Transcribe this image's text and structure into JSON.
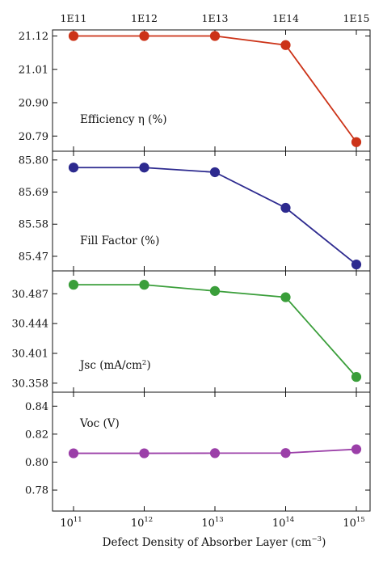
{
  "chart_data": {
    "type": "line",
    "x": [
      11,
      12,
      13,
      14,
      15
    ],
    "xlabel": {
      "text": "Defect Density of Absorber Layer (cm",
      "exp": "−3",
      "close": ")"
    },
    "bottom_ticks": [
      {
        "base": "10",
        "exp": "11"
      },
      {
        "base": "10",
        "exp": "12"
      },
      {
        "base": "10",
        "exp": "13"
      },
      {
        "base": "10",
        "exp": "14"
      },
      {
        "base": "10",
        "exp": "15"
      }
    ],
    "top_ticks": [
      "1E11",
      "1E12",
      "1E13",
      "1E14",
      "1E15"
    ],
    "panels": [
      {
        "label": "Efficiency η (%)",
        "color": "#cc3318",
        "values": [
          21.12,
          21.12,
          21.12,
          21.09,
          20.77
        ],
        "ylim": [
          20.74,
          21.14
        ],
        "yticks": [
          20.79,
          20.9,
          21.01,
          21.12
        ],
        "ytick_labels": [
          "20.79",
          "20.90",
          "21.01",
          "21.12"
        ]
      },
      {
        "label": "Fill Factor (%)",
        "color": "#2d2a8f",
        "values": [
          85.774,
          85.774,
          85.758,
          85.636,
          85.442
        ],
        "ylim": [
          85.42,
          85.83
        ],
        "yticks": [
          85.47,
          85.58,
          85.69,
          85.8
        ],
        "ytick_labels": [
          "85.47",
          "85.58",
          "85.69",
          "85.80"
        ]
      },
      {
        "label": "Jsc (mA/cm",
        "label_sup": "2",
        "label_close": ")",
        "color": "#3a9e3a",
        "values": [
          30.5,
          30.5,
          30.491,
          30.482,
          30.367
        ],
        "ylim": [
          30.345,
          30.52
        ],
        "yticks": [
          30.358,
          30.401,
          30.444,
          30.487
        ],
        "ytick_labels": [
          "30.358",
          "30.401",
          "30.444",
          "30.487"
        ]
      },
      {
        "label": "Voc (V)",
        "color": "#9b3fa8",
        "values": [
          0.8063,
          0.8063,
          0.8064,
          0.8065,
          0.8092
        ],
        "ylim": [
          0.765,
          0.85
        ],
        "yticks": [
          0.78,
          0.8,
          0.82,
          0.84
        ],
        "ytick_labels": [
          "0.78",
          "0.80",
          "0.82",
          "0.84"
        ]
      }
    ]
  }
}
